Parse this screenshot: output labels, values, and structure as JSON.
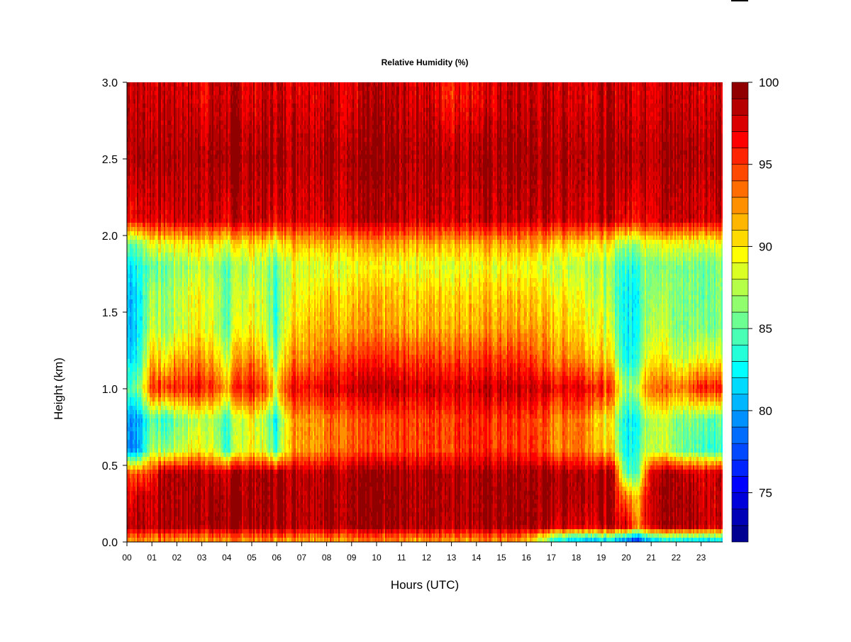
{
  "chart_data": {
    "type": "heatmap",
    "title": "Relative Humidity (%)",
    "xlabel": "Hours (UTC)",
    "ylabel": "Height (km)",
    "xlim": [
      0,
      23.9
    ],
    "ylim": [
      0,
      3.0
    ],
    "x_ticks": [
      {
        "value": 0,
        "label": "00"
      },
      {
        "value": 1,
        "label": "01"
      },
      {
        "value": 2,
        "label": "02"
      },
      {
        "value": 3,
        "label": "03"
      },
      {
        "value": 4,
        "label": "04"
      },
      {
        "value": 5,
        "label": "05"
      },
      {
        "value": 6,
        "label": "06"
      },
      {
        "value": 7,
        "label": "07"
      },
      {
        "value": 8,
        "label": "08"
      },
      {
        "value": 9,
        "label": "09"
      },
      {
        "value": 10,
        "label": "10"
      },
      {
        "value": 11,
        "label": "11"
      },
      {
        "value": 12,
        "label": "12"
      },
      {
        "value": 13,
        "label": "13"
      },
      {
        "value": 14,
        "label": "14"
      },
      {
        "value": 15,
        "label": "15"
      },
      {
        "value": 16,
        "label": "16"
      },
      {
        "value": 17,
        "label": "17"
      },
      {
        "value": 18,
        "label": "18"
      },
      {
        "value": 19,
        "label": "19"
      },
      {
        "value": 20,
        "label": "20"
      },
      {
        "value": 21,
        "label": "21"
      },
      {
        "value": 22,
        "label": "22"
      },
      {
        "value": 23,
        "label": "23"
      }
    ],
    "y_ticks": [
      {
        "value": 0.0,
        "label": "0.0"
      },
      {
        "value": 0.5,
        "label": "0.5"
      },
      {
        "value": 1.0,
        "label": "1.0"
      },
      {
        "value": 1.5,
        "label": "1.5"
      },
      {
        "value": 2.0,
        "label": "2.0"
      },
      {
        "value": 2.5,
        "label": "2.5"
      },
      {
        "value": 3.0,
        "label": "3.0"
      }
    ],
    "colorbar": {
      "min": 72,
      "max": 100,
      "levels": 28,
      "ticks": [
        {
          "value": 75,
          "label": "75"
        },
        {
          "value": 80,
          "label": "80"
        },
        {
          "value": 85,
          "label": "85"
        },
        {
          "value": 90,
          "label": "90"
        },
        {
          "value": 95,
          "label": "95"
        },
        {
          "value": 100,
          "label": "100"
        }
      ],
      "palette": [
        "#00007f",
        "#0000ff",
        "#007fff",
        "#00ffff",
        "#7fff7f",
        "#ffff00",
        "#ff7f00",
        "#ff0000",
        "#7f0000"
      ]
    },
    "grid_x_hours": [
      0,
      0.5,
      1,
      1.5,
      2,
      2.5,
      3,
      3.5,
      4,
      4.5,
      5,
      5.5,
      6,
      6.5,
      7,
      7.5,
      8,
      8.5,
      9,
      9.5,
      10,
      10.5,
      11,
      11.5,
      12,
      12.5,
      13,
      13.5,
      14,
      14.5,
      15,
      15.5,
      16,
      16.5,
      17,
      17.5,
      18,
      18.5,
      19,
      19.5,
      20,
      20.5,
      21,
      21.5,
      22,
      22.5,
      23,
      23.5
    ],
    "grid_heights_km": [
      0.02,
      0.1,
      0.3,
      0.45,
      0.6,
      0.8,
      1.0,
      1.2,
      1.4,
      1.6,
      1.8,
      1.95,
      2.1,
      2.5,
      2.9
    ],
    "z_rows_rh_percent": [
      [
        93,
        93,
        93,
        93,
        93,
        93,
        93,
        93,
        93,
        93,
        93,
        93,
        93,
        93,
        93,
        93,
        93,
        93,
        93,
        93,
        93,
        93,
        93,
        93,
        93,
        93,
        93,
        93,
        93,
        93,
        93,
        93,
        92,
        89,
        85,
        83,
        82,
        82,
        82,
        82,
        80,
        78,
        83,
        83,
        83,
        83,
        83,
        83
      ],
      [
        99,
        99,
        98,
        99,
        99,
        99,
        99,
        99,
        99,
        99,
        99,
        99,
        99,
        99,
        99,
        99,
        99,
        99,
        99,
        99,
        99,
        99,
        99,
        99,
        99,
        99,
        99,
        99,
        99,
        99,
        99,
        99,
        99,
        99,
        98,
        98,
        98,
        98,
        98,
        98,
        98,
        93,
        99,
        99,
        99,
        99,
        99,
        98
      ],
      [
        97,
        98,
        98,
        99,
        99,
        99,
        99,
        99,
        99,
        99,
        99,
        99,
        99,
        99,
        99,
        99,
        99,
        99,
        99,
        99,
        99,
        99,
        99,
        99,
        99,
        99,
        99,
        99,
        99,
        99,
        99,
        99,
        99,
        99,
        99,
        99,
        99,
        99,
        99,
        98,
        93,
        92,
        99,
        99,
        99,
        99,
        98,
        98
      ],
      [
        95,
        94,
        96,
        99,
        99,
        99,
        99,
        98,
        98,
        99,
        99,
        99,
        99,
        99,
        99,
        99,
        99,
        99,
        99,
        99,
        99,
        99,
        99,
        99,
        99,
        99,
        99,
        99,
        99,
        99,
        99,
        99,
        99,
        99,
        99,
        99,
        99,
        99,
        99,
        98,
        84,
        86,
        99,
        99,
        99,
        98,
        98,
        98
      ],
      [
        80,
        80,
        88,
        86,
        88,
        89,
        90,
        88,
        84,
        88,
        90,
        88,
        84,
        92,
        93,
        93,
        93,
        94,
        94,
        94,
        94,
        94,
        95,
        95,
        95,
        95,
        95,
        96,
        96,
        95,
        95,
        95,
        95,
        95,
        93,
        93,
        94,
        93,
        91,
        90,
        82,
        85,
        89,
        88,
        86,
        85,
        85,
        84
      ],
      [
        80,
        80,
        86,
        83,
        86,
        87,
        88,
        87,
        84,
        88,
        90,
        87,
        83,
        92,
        93,
        93,
        93,
        94,
        94,
        94,
        94,
        94,
        95,
        95,
        95,
        95,
        95,
        96,
        96,
        95,
        95,
        95,
        95,
        95,
        93,
        93,
        94,
        93,
        90,
        89,
        82,
        84,
        89,
        88,
        86,
        86,
        86,
        85
      ],
      [
        85,
        86,
        96,
        95,
        96,
        96,
        97,
        95,
        92,
        96,
        97,
        95,
        90,
        97,
        97,
        97,
        98,
        98,
        98,
        98,
        98,
        98,
        98,
        98,
        98,
        98,
        98,
        98,
        98,
        98,
        98,
        98,
        98,
        98,
        97,
        97,
        98,
        97,
        96,
        94,
        86,
        89,
        95,
        94,
        93,
        94,
        97,
        96
      ],
      [
        82,
        83,
        92,
        89,
        92,
        92,
        93,
        91,
        88,
        92,
        93,
        91,
        86,
        93,
        93,
        94,
        94,
        95,
        95,
        95,
        95,
        95,
        95,
        95,
        95,
        95,
        95,
        95,
        95,
        95,
        95,
        95,
        95,
        94,
        93,
        93,
        93,
        92,
        91,
        89,
        82,
        85,
        91,
        90,
        88,
        88,
        90,
        89
      ],
      [
        81,
        82,
        89,
        86,
        88,
        89,
        90,
        88,
        85,
        89,
        90,
        88,
        84,
        91,
        91,
        92,
        92,
        92,
        92,
        92,
        92,
        92,
        92,
        92,
        92,
        92,
        92,
        92,
        92,
        92,
        92,
        92,
        92,
        92,
        91,
        91,
        91,
        90,
        89,
        87,
        82,
        84,
        89,
        88,
        86,
        86,
        87,
        86
      ],
      [
        81,
        82,
        88,
        86,
        88,
        89,
        90,
        88,
        85,
        88,
        89,
        88,
        84,
        90,
        90,
        91,
        91,
        91,
        91,
        91,
        91,
        91,
        91,
        91,
        91,
        91,
        91,
        91,
        91,
        91,
        91,
        91,
        91,
        91,
        90,
        90,
        90,
        89,
        88,
        86,
        82,
        84,
        88,
        87,
        86,
        86,
        86,
        86
      ],
      [
        82,
        83,
        86,
        85,
        87,
        87,
        88,
        87,
        85,
        87,
        88,
        87,
        85,
        89,
        89,
        89,
        89,
        89,
        89,
        89,
        89,
        89,
        89,
        89,
        89,
        89,
        89,
        89,
        89,
        89,
        89,
        89,
        89,
        89,
        88,
        88,
        88,
        88,
        87,
        86,
        83,
        85,
        87,
        86,
        86,
        86,
        86,
        86
      ],
      [
        86,
        86,
        90,
        89,
        90,
        90,
        91,
        90,
        89,
        90,
        91,
        90,
        89,
        92,
        92,
        92,
        92,
        92,
        92,
        92,
        92,
        92,
        92,
        92,
        92,
        92,
        92,
        92,
        92,
        92,
        92,
        92,
        92,
        92,
        91,
        91,
        91,
        91,
        90,
        89,
        87,
        88,
        90,
        89,
        89,
        89,
        89,
        89
      ],
      [
        97,
        97,
        98,
        97,
        98,
        98,
        98,
        98,
        97,
        98,
        98,
        98,
        97,
        98,
        98,
        98,
        98,
        98,
        98,
        98,
        98,
        98,
        98,
        98,
        98,
        98,
        98,
        98,
        98,
        98,
        98,
        98,
        98,
        98,
        98,
        98,
        98,
        98,
        98,
        98,
        97,
        97,
        98,
        98,
        98,
        98,
        98,
        98
      ],
      [
        99,
        99,
        99,
        99,
        99,
        99,
        99,
        99,
        99,
        99,
        99,
        99,
        99,
        99,
        99,
        99,
        99,
        99,
        99,
        99,
        99,
        99,
        99,
        99,
        99,
        99,
        99,
        99,
        99,
        99,
        99,
        99,
        99,
        99,
        99,
        99,
        99,
        99,
        99,
        99,
        99,
        99,
        99,
        99,
        99,
        99,
        99,
        99
      ],
      [
        99,
        98,
        98,
        98,
        98,
        98,
        97,
        98,
        98,
        98,
        97,
        98,
        98,
        98,
        98,
        98,
        98,
        98,
        97,
        98,
        98,
        98,
        98,
        98,
        98,
        97,
        96,
        97,
        97,
        97,
        98,
        98,
        98,
        98,
        98,
        98,
        98,
        98,
        98,
        98,
        98,
        98,
        98,
        98,
        98,
        98,
        98,
        98
      ]
    ]
  }
}
